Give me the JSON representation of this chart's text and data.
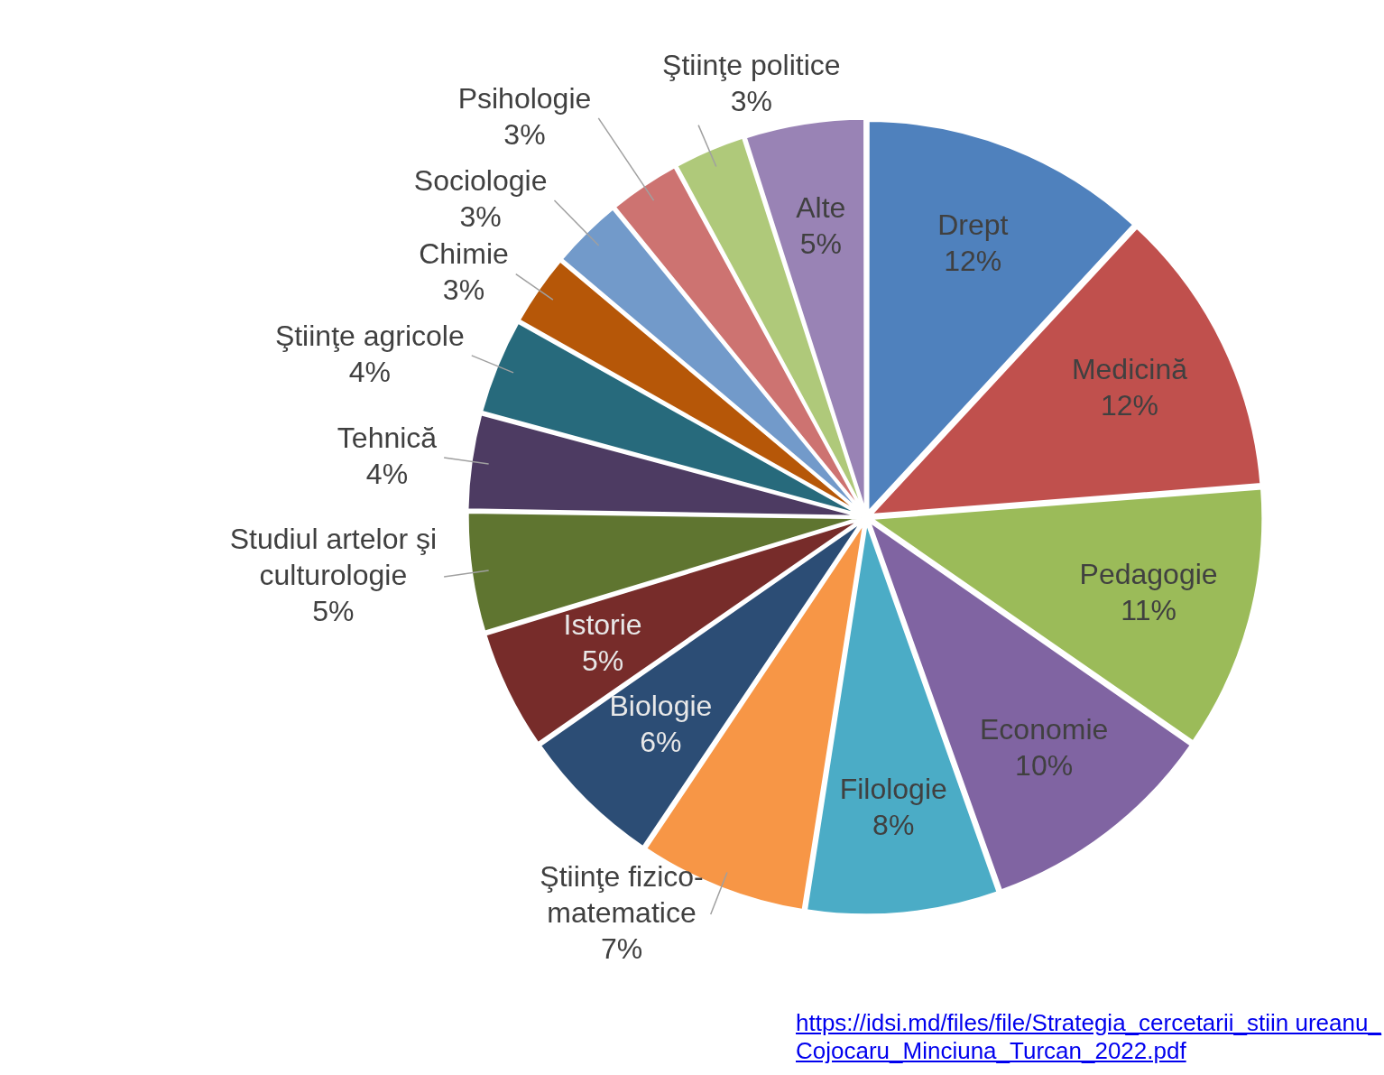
{
  "chart_data": {
    "type": "pie",
    "categories": [
      "Drept",
      "Medicină",
      "Pedagogie",
      "Economie",
      "Filologie",
      "Ştiinţe fizico-matematice",
      "Biologie",
      "Istorie",
      "Studiul artelor şi culturologie",
      "Tehnică",
      "Ştiinţe agricole",
      "Chimie",
      "Sociologie",
      "Psihologie",
      "Ştiinţe politice",
      "Alte"
    ],
    "values": [
      12,
      12,
      11,
      10,
      8,
      7,
      6,
      5,
      5,
      4,
      4,
      3,
      3,
      3,
      3,
      5
    ],
    "colors": [
      "#4f81bd",
      "#c0504d",
      "#9bbb59",
      "#8064a2",
      "#4bacc6",
      "#f79646",
      "#2c4d75",
      "#772c2a",
      "#5f7530",
      "#4d3b62",
      "#276a7c",
      "#b65708",
      "#729aca",
      "#cd7371",
      "#afc97a",
      "#9983b5"
    ],
    "value_labels": [
      "12%",
      "12%",
      "11%",
      "10%",
      "8%",
      "7%",
      "6%",
      "5%",
      "5%",
      "4%",
      "4%",
      "3%",
      "3%",
      "3%",
      "3%",
      "5%"
    ],
    "legend": false,
    "annotations": [
      "https://idsi.md/files/file/Strategia_cercetarii_stiin ureanu_Cojocaru_Minciuna_Turcan_2022.pdf"
    ]
  }
}
